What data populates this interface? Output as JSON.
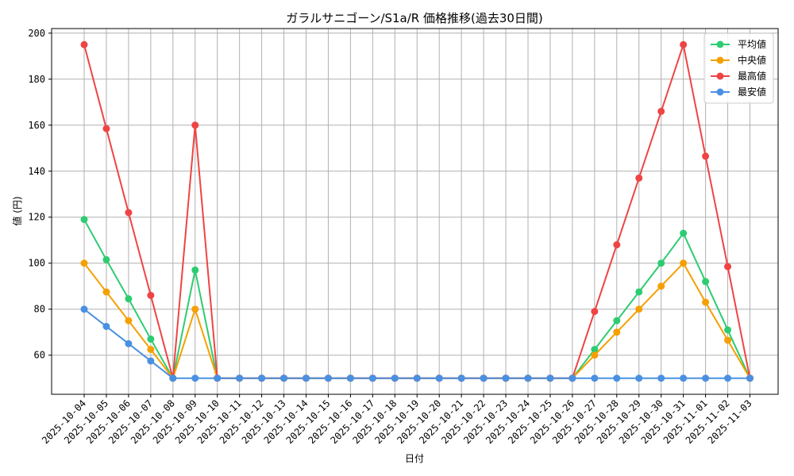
{
  "chart_data": {
    "type": "line",
    "title": "ガラルサニゴーン/S1a/R 価格推移(過去30日間)",
    "xlabel": "日付",
    "ylabel": "値 (円)",
    "ylim": [
      43,
      202
    ],
    "yticks": [
      60,
      80,
      100,
      120,
      140,
      160,
      180,
      200
    ],
    "grid": true,
    "legend_position": "top-right",
    "x": [
      "2025-10-04",
      "2025-10-05",
      "2025-10-06",
      "2025-10-07",
      "2025-10-08",
      "2025-10-09",
      "2025-10-10",
      "2025-10-11",
      "2025-10-12",
      "2025-10-13",
      "2025-10-14",
      "2025-10-15",
      "2025-10-16",
      "2025-10-17",
      "2025-10-18",
      "2025-10-19",
      "2025-10-20",
      "2025-10-21",
      "2025-10-22",
      "2025-10-23",
      "2025-10-24",
      "2025-10-25",
      "2025-10-26",
      "2025-10-27",
      "2025-10-28",
      "2025-10-29",
      "2025-10-30",
      "2025-10-31",
      "2025-11-01",
      "2025-11-02",
      "2025-11-03"
    ],
    "series": [
      {
        "name": "平均値",
        "color": "#2ecc71",
        "values": [
          119,
          101.5,
          84.5,
          67,
          50,
          97,
          50,
          50,
          50,
          50,
          50,
          50,
          50,
          50,
          50,
          50,
          50,
          50,
          50,
          50,
          50,
          50,
          50,
          62.5,
          75,
          87.5,
          100,
          113,
          92,
          71,
          50
        ]
      },
      {
        "name": "中央値",
        "color": "#f5a000",
        "values": [
          100,
          87.5,
          75,
          62.5,
          50,
          80,
          50,
          50,
          50,
          50,
          50,
          50,
          50,
          50,
          50,
          50,
          50,
          50,
          50,
          50,
          50,
          50,
          50,
          60,
          70,
          80,
          90,
          100,
          83,
          66.5,
          50
        ]
      },
      {
        "name": "最高値",
        "color": "#ef4444",
        "values": [
          195,
          158.5,
          122,
          86,
          50,
          160,
          50,
          50,
          50,
          50,
          50,
          50,
          50,
          50,
          50,
          50,
          50,
          50,
          50,
          50,
          50,
          50,
          50,
          79,
          108,
          137,
          166,
          195,
          146.5,
          98.5,
          50
        ]
      },
      {
        "name": "最安値",
        "color": "#4a90e2",
        "values": [
          80,
          72.5,
          65,
          57.5,
          50,
          50,
          50,
          50,
          50,
          50,
          50,
          50,
          50,
          50,
          50,
          50,
          50,
          50,
          50,
          50,
          50,
          50,
          50,
          50,
          50,
          50,
          50,
          50,
          50,
          50,
          50
        ]
      }
    ]
  }
}
